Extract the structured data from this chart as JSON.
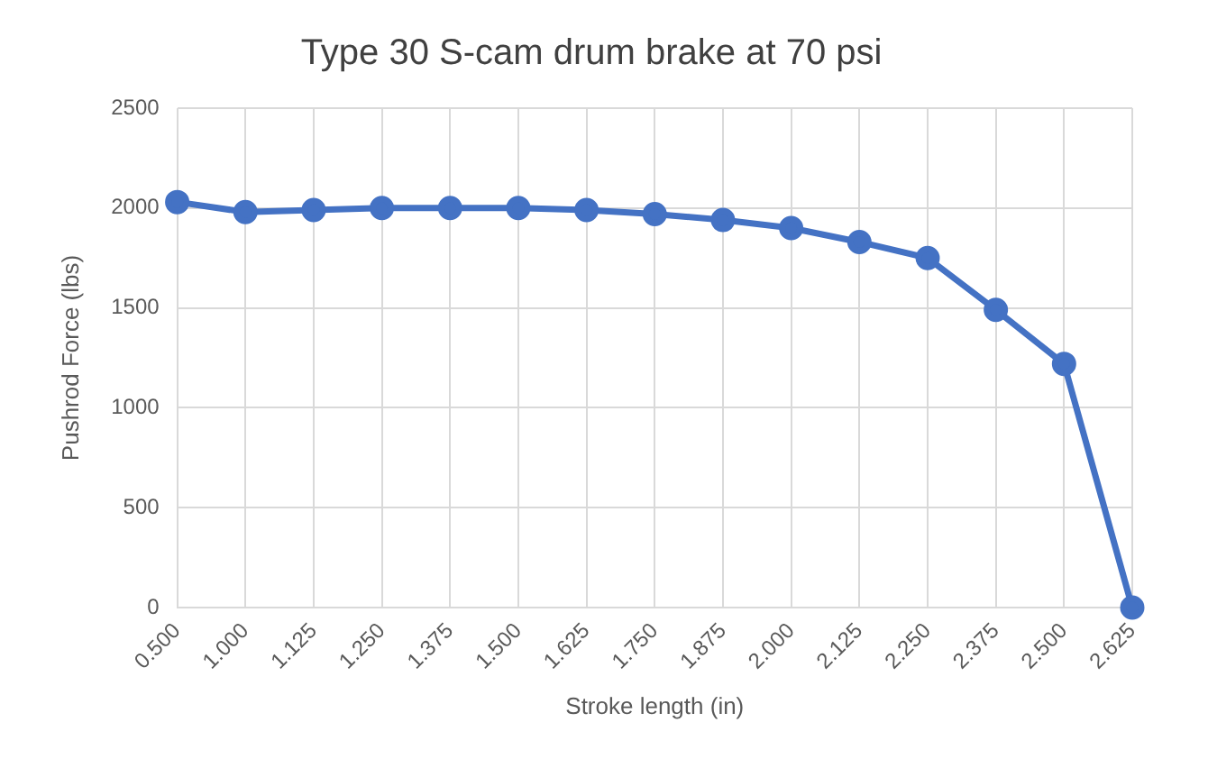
{
  "chart_data": {
    "type": "line",
    "title": "Type 30 S-cam drum brake at 70 psi",
    "xlabel": "Stroke length (in)",
    "ylabel": "Pushrod Force (lbs)",
    "categories": [
      "0.500",
      "1.000",
      "1.125",
      "1.250",
      "1.375",
      "1.500",
      "1.625",
      "1.750",
      "1.875",
      "2.000",
      "2.125",
      "2.250",
      "2.375",
      "2.500",
      "2.625"
    ],
    "series": [
      {
        "color": "#4472c4",
        "values": [
          2030,
          1980,
          1990,
          2000,
          2000,
          2000,
          1990,
          1970,
          1940,
          1900,
          1830,
          1750,
          1490,
          1220,
          0
        ]
      }
    ],
    "ylim": [
      0,
      2500
    ],
    "yticks": [
      0,
      500,
      1000,
      1500,
      2000,
      2500
    ],
    "grid": true,
    "legend": false,
    "marker": "circle",
    "line_style": "solid"
  }
}
